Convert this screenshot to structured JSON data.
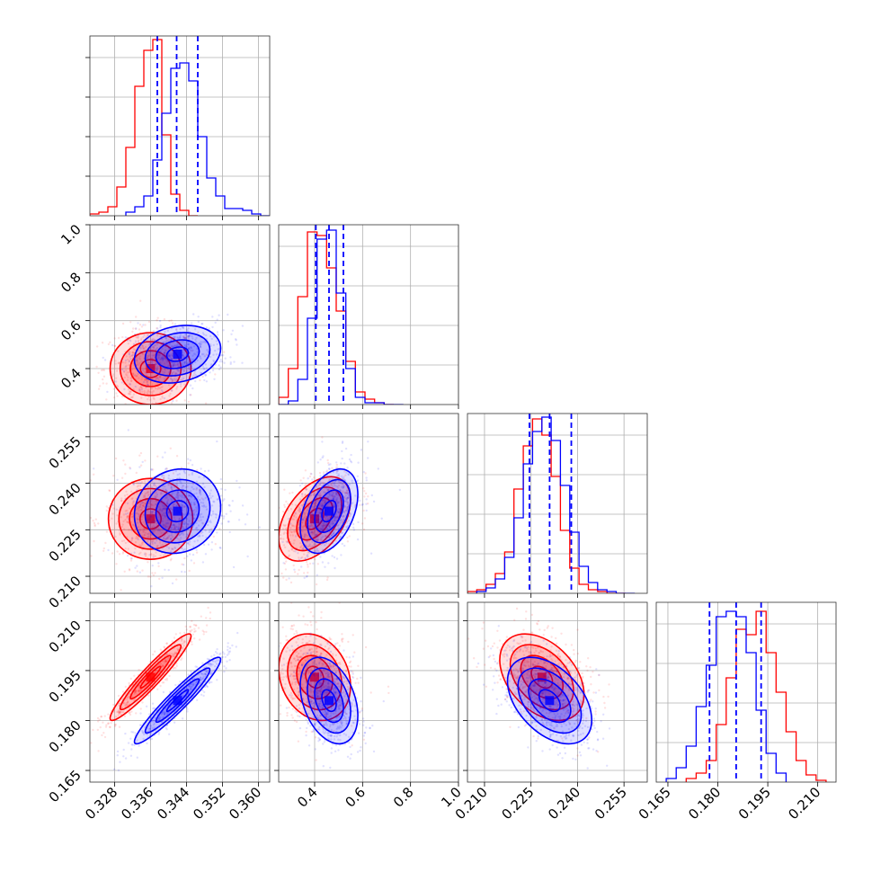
{
  "chart_data": {
    "type": "corner",
    "grid": true,
    "series": [
      {
        "color": "#ff0000",
        "mean": [
          0.336,
          0.4,
          0.2285,
          0.193
        ],
        "std": [
          0.0045,
          0.075,
          0.0068,
          0.0065
        ],
        "corr": [
          [
            1,
            0,
            0,
            0.95
          ],
          [
            0,
            1,
            0.45,
            -0.2
          ],
          [
            0,
            0.45,
            1,
            -0.4
          ],
          [
            0.95,
            -0.2,
            -0.4,
            1
          ]
        ]
      },
      {
        "color": "#0000ff",
        "mean": [
          0.342,
          0.46,
          0.231,
          0.186
        ],
        "std": [
          0.0048,
          0.06,
          0.0068,
          0.0065
        ],
        "corr": [
          [
            1,
            0.2,
            0.1,
            0.95
          ],
          [
            0.2,
            1,
            0.4,
            -0.35
          ],
          [
            0.1,
            0.4,
            1,
            -0.45
          ],
          [
            0.95,
            -0.35,
            -0.45,
            1
          ]
        ]
      }
    ],
    "quantile_lines": {
      "color": "#0000ff",
      "values": [
        [
          0.3375,
          0.3418,
          0.3465
        ],
        [
          0.405,
          0.46,
          0.52
        ],
        [
          0.2245,
          0.231,
          0.238
        ],
        [
          0.1775,
          0.1855,
          0.193
        ]
      ]
    },
    "axes": [
      {
        "range": [
          0.3225,
          0.3625
        ],
        "ticks": [
          0.328,
          0.336,
          0.344,
          0.352,
          0.36
        ],
        "tick_labels": [
          "0.328",
          "0.336",
          "0.344",
          "0.352",
          "0.360"
        ]
      },
      {
        "range": [
          0.25,
          1.0
        ],
        "ticks": [
          0.4,
          0.6,
          0.8,
          1.0
        ],
        "tick_labels": [
          "0.4",
          "0.6",
          "0.8",
          "1.0"
        ]
      },
      {
        "range": [
          0.2045,
          0.2625
        ],
        "ticks": [
          0.21,
          0.225,
          0.24,
          0.255
        ],
        "tick_labels": [
          "0.210",
          "0.225",
          "0.240",
          "0.255"
        ]
      },
      {
        "range": [
          0.1615,
          0.2155
        ],
        "ticks": [
          0.165,
          0.18,
          0.195,
          0.21
        ],
        "tick_labels": [
          "0.165",
          "0.180",
          "0.195",
          "0.210"
        ]
      }
    ],
    "histograms": [
      {
        "series": [
          {
            "color": "#ff0000",
            "edges": [
              0.3225,
              0.3245,
              0.3265,
              0.3285,
              0.3305,
              0.3325,
              0.3345,
              0.3365,
              0.3385,
              0.3405,
              0.3425,
              0.3445,
              0.3465
            ],
            "counts": [
              0.01,
              0.02,
              0.05,
              0.16,
              0.38,
              0.72,
              0.92,
              0.98,
              0.45,
              0.12,
              0.03,
              0.0
            ]
          },
          {
            "color": "#0000ff",
            "edges": [
              0.3305,
              0.3325,
              0.3345,
              0.3365,
              0.3385,
              0.3405,
              0.3425,
              0.3445,
              0.3465,
              0.3485,
              0.3505,
              0.3525,
              0.3545,
              0.3565,
              0.3585,
              0.3605,
              0.3625
            ],
            "counts": [
              0.02,
              0.05,
              0.11,
              0.31,
              0.57,
              0.82,
              0.85,
              0.75,
              0.44,
              0.21,
              0.11,
              0.04,
              0.04,
              0.03,
              0.01,
              0.0
            ]
          }
        ]
      },
      {
        "series": [
          {
            "color": "#ff0000",
            "edges": [
              0.25,
              0.29,
              0.33,
              0.37,
              0.41,
              0.45,
              0.49,
              0.53,
              0.57,
              0.61,
              0.65,
              0.69,
              0.73
            ],
            "counts": [
              0.04,
              0.2,
              0.6,
              0.96,
              0.94,
              0.76,
              0.52,
              0.24,
              0.07,
              0.03,
              0.01,
              0.0
            ]
          },
          {
            "color": "#0000ff",
            "edges": [
              0.25,
              0.29,
              0.33,
              0.37,
              0.41,
              0.45,
              0.49,
              0.53,
              0.57,
              0.61,
              0.65,
              0.69,
              0.73,
              0.77
            ],
            "counts": [
              0.0,
              0.02,
              0.14,
              0.48,
              0.92,
              0.97,
              0.62,
              0.2,
              0.04,
              0.01,
              0.01,
              0.0,
              0.0
            ]
          }
        ]
      },
      {
        "series": [
          {
            "color": "#ff0000",
            "edges": [
              0.2045,
              0.2075,
              0.2105,
              0.2135,
              0.2165,
              0.2195,
              0.2225,
              0.2255,
              0.2285,
              0.2315,
              0.2345,
              0.2375,
              0.2405,
              0.2435,
              0.2465,
              0.2495,
              0.2525,
              0.2555
            ],
            "counts": [
              0.01,
              0.02,
              0.05,
              0.11,
              0.23,
              0.58,
              0.82,
              0.97,
              0.88,
              0.65,
              0.35,
              0.14,
              0.05,
              0.02,
              0.01,
              0.0,
              0.0
            ]
          },
          {
            "color": "#0000ff",
            "edges": [
              0.2075,
              0.2105,
              0.2135,
              0.2165,
              0.2195,
              0.2225,
              0.2255,
              0.2285,
              0.2315,
              0.2345,
              0.2375,
              0.2405,
              0.2435,
              0.2465,
              0.2495,
              0.2525,
              0.2555,
              0.2585
            ],
            "counts": [
              0.01,
              0.03,
              0.08,
              0.2,
              0.42,
              0.72,
              0.9,
              0.98,
              0.85,
              0.6,
              0.34,
              0.15,
              0.06,
              0.02,
              0.01,
              0.0,
              0.0
            ]
          }
        ]
      },
      {
        "series": [
          {
            "color": "#ff0000",
            "edges": [
              0.1705,
              0.1735,
              0.1765,
              0.1795,
              0.1825,
              0.1855,
              0.1885,
              0.1915,
              0.1945,
              0.1975,
              0.2005,
              0.2035,
              0.2065,
              0.2095,
              0.2125
            ],
            "counts": [
              0.02,
              0.05,
              0.12,
              0.32,
              0.58,
              0.85,
              0.82,
              0.95,
              0.72,
              0.5,
              0.28,
              0.12,
              0.04,
              0.01
            ]
          },
          {
            "color": "#0000ff",
            "edges": [
              0.1645,
              0.1675,
              0.1705,
              0.1735,
              0.1765,
              0.1795,
              0.1825,
              0.1855,
              0.1885,
              0.1915,
              0.1945,
              0.1975,
              0.2005
            ],
            "counts": [
              0.02,
              0.08,
              0.2,
              0.42,
              0.65,
              0.92,
              0.95,
              0.92,
              0.72,
              0.4,
              0.16,
              0.05
            ]
          }
        ]
      }
    ]
  }
}
